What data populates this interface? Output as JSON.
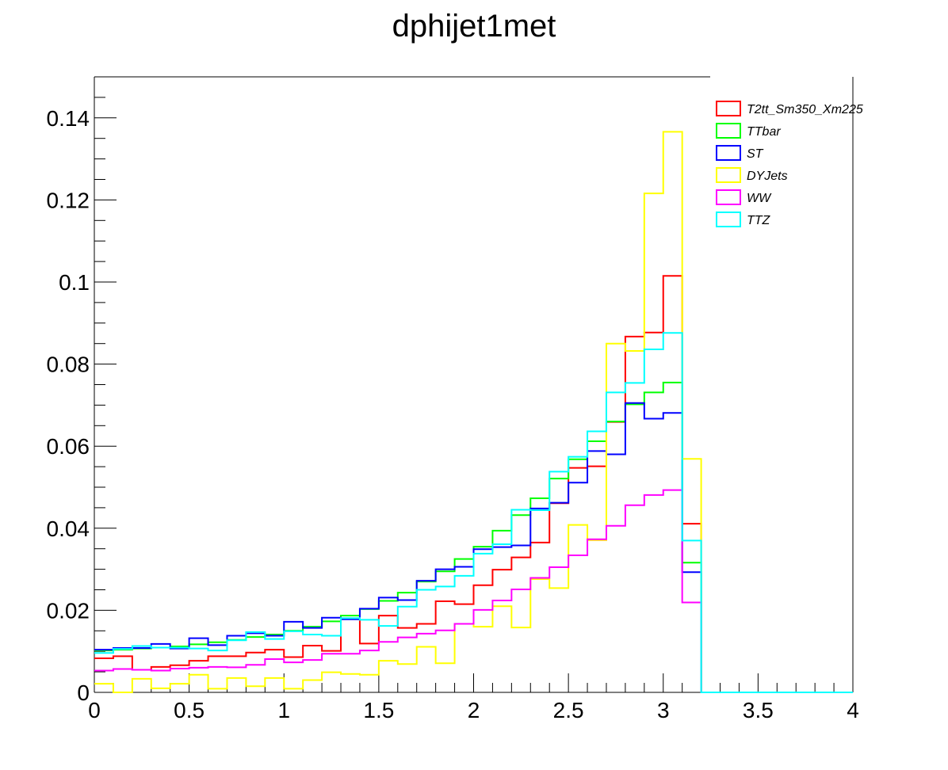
{
  "chart_data": {
    "type": "histogram",
    "title": "dphijet1met",
    "xlim": [
      0,
      4
    ],
    "ylim": [
      0,
      0.15
    ],
    "bin_edges_start": 0,
    "bin_width": 0.1,
    "x_ticks": [
      "0",
      "0.5",
      "1",
      "1.5",
      "2",
      "2.5",
      "3",
      "3.5",
      "4"
    ],
    "y_ticks": [
      "0",
      "0.02",
      "0.04",
      "0.06",
      "0.08",
      "0.1",
      "0.12",
      "0.14"
    ],
    "legend_position": "top-right",
    "series": [
      {
        "name": "T2tt_Sm350_Xm225",
        "color": "#ff0000",
        "values": [
          0.0083,
          0.0088,
          0.0055,
          0.0062,
          0.0066,
          0.0077,
          0.0088,
          0.0088,
          0.0097,
          0.0104,
          0.0086,
          0.0114,
          0.0101,
          0.0179,
          0.0119,
          0.0187,
          0.0157,
          0.0167,
          0.0222,
          0.0215,
          0.0261,
          0.0299,
          0.0329,
          0.0365,
          0.0461,
          0.0547,
          0.0551,
          0.0659,
          0.0867,
          0.0877,
          0.1015,
          0.0411,
          0,
          0,
          0,
          0,
          0,
          0,
          0,
          0
        ]
      },
      {
        "name": "TTbar",
        "color": "#00ff00",
        "values": [
          0.0102,
          0.0104,
          0.0107,
          0.0109,
          0.0112,
          0.0117,
          0.0122,
          0.0128,
          0.0135,
          0.0141,
          0.015,
          0.016,
          0.0173,
          0.0187,
          0.0203,
          0.0223,
          0.0243,
          0.027,
          0.0295,
          0.0325,
          0.0355,
          0.0394,
          0.0432,
          0.0473,
          0.0521,
          0.0568,
          0.0612,
          0.066,
          0.0702,
          0.0731,
          0.0755,
          0.0316,
          0,
          0,
          0,
          0,
          0,
          0,
          0,
          0
        ]
      },
      {
        "name": "ST",
        "color": "#0000ff",
        "values": [
          0.0104,
          0.0108,
          0.0108,
          0.0118,
          0.0107,
          0.0132,
          0.0115,
          0.0138,
          0.0144,
          0.0138,
          0.0172,
          0.0157,
          0.0182,
          0.0178,
          0.0204,
          0.0231,
          0.0225,
          0.0272,
          0.03,
          0.0306,
          0.0349,
          0.0354,
          0.0358,
          0.0448,
          0.0462,
          0.0511,
          0.0588,
          0.058,
          0.0705,
          0.0667,
          0.0681,
          0.0293,
          0,
          0,
          0,
          0,
          0,
          0,
          0,
          0
        ]
      },
      {
        "name": "DYJets",
        "color": "#ffff00",
        "values": [
          0.0021,
          0,
          0.0033,
          0.001,
          0.0021,
          0.0043,
          0.0009,
          0.0035,
          0.0015,
          0.0035,
          0.0009,
          0.003,
          0.0049,
          0.0045,
          0.0043,
          0.0077,
          0.0069,
          0.0111,
          0.0071,
          0.0167,
          0.016,
          0.021,
          0.0158,
          0.0276,
          0.0254,
          0.0408,
          0.0371,
          0.085,
          0.0832,
          0.1216,
          0.1366,
          0.0569,
          0,
          0,
          0,
          0,
          0,
          0,
          0,
          0
        ]
      },
      {
        "name": "WW",
        "color": "#ff00ff",
        "values": [
          0.0053,
          0.0057,
          0.0055,
          0.0053,
          0.0058,
          0.006,
          0.0062,
          0.0061,
          0.0067,
          0.0081,
          0.0073,
          0.0079,
          0.0094,
          0.0094,
          0.0102,
          0.0123,
          0.0134,
          0.0143,
          0.0151,
          0.0167,
          0.0201,
          0.0224,
          0.0251,
          0.0279,
          0.0305,
          0.0334,
          0.0373,
          0.0406,
          0.0456,
          0.0481,
          0.0493,
          0.0219,
          0,
          0,
          0,
          0,
          0,
          0,
          0,
          0
        ]
      },
      {
        "name": "TTZ",
        "color": "#00ffff",
        "values": [
          0.0096,
          0.0106,
          0.0113,
          0.0109,
          0.0109,
          0.0107,
          0.0102,
          0.0127,
          0.0147,
          0.013,
          0.0149,
          0.0141,
          0.0138,
          0.0181,
          0.0177,
          0.0162,
          0.0209,
          0.025,
          0.0258,
          0.0284,
          0.0338,
          0.0361,
          0.0445,
          0.0444,
          0.0538,
          0.0574,
          0.0636,
          0.0731,
          0.0754,
          0.0836,
          0.0876,
          0.037,
          0,
          0,
          0,
          0,
          0,
          0,
          0,
          0
        ]
      }
    ]
  }
}
